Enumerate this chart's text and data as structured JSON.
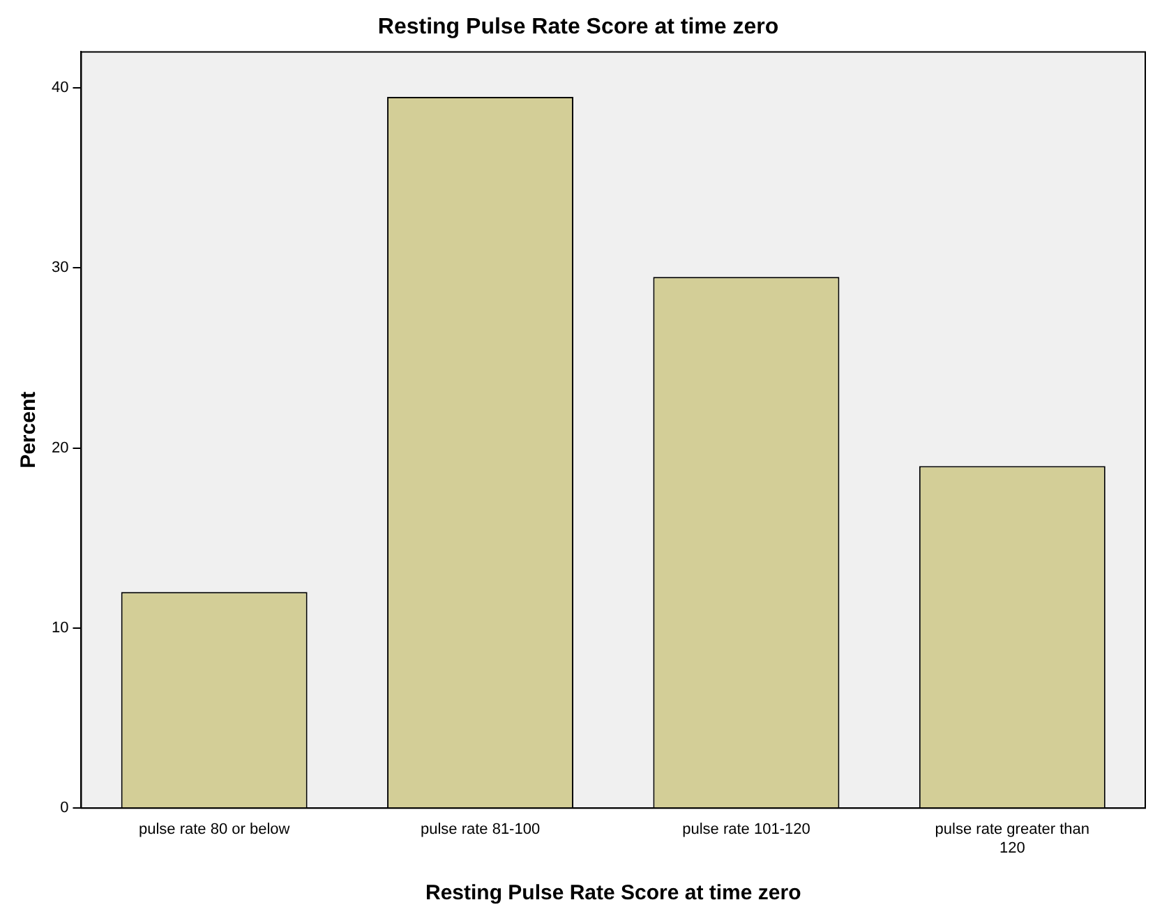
{
  "chart_data": {
    "type": "bar",
    "title": "Resting Pulse Rate Score at time zero",
    "xlabel": "Resting Pulse Rate Score at time zero",
    "ylabel": "Percent",
    "categories": [
      "pulse rate 80 or below",
      "pulse rate 81-100",
      "pulse rate 101-120",
      "pulse rate greater than 120"
    ],
    "values": [
      12.0,
      39.5,
      29.5,
      19.0
    ],
    "color": "#d3ce97",
    "ylim": [
      0,
      42
    ],
    "yticks": [
      0,
      10,
      20,
      30,
      40
    ],
    "grid": false
  }
}
